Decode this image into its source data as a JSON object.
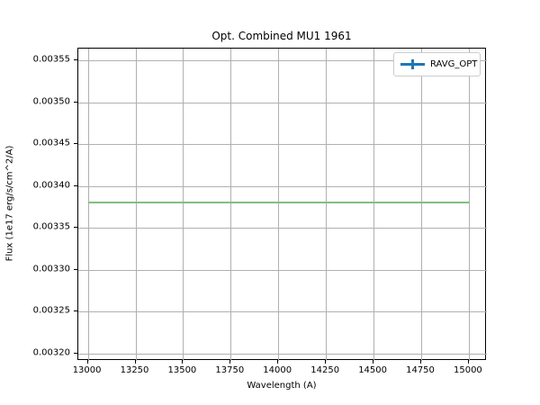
{
  "figure": {
    "background": "#ffffff"
  },
  "chart_data": {
    "type": "line",
    "title": "Opt. Combined MU1 1961",
    "xlabel": "Wavelength (A)",
    "ylabel": "Flux (1e17 erg/s/cm^2/A)",
    "xlim": [
      12950,
      15095
    ],
    "ylim": [
      0.0031909,
      0.0035642
    ],
    "x_ticks": [
      13000,
      13250,
      13500,
      13750,
      14000,
      14250,
      14500,
      14750,
      15000
    ],
    "y_ticks": [
      0.0032,
      0.00325,
      0.0033,
      0.00335,
      0.0034,
      0.00345,
      0.0035,
      0.00355
    ],
    "grid": true,
    "legend": {
      "position": "upper right",
      "entries": [
        {
          "label": "RAVG_OPT",
          "color": "#1f77b4",
          "marker": "errorbar"
        }
      ]
    },
    "series": [
      {
        "name": "RAVG_OPT",
        "color": "#80bf80",
        "x": [
          13000,
          15000
        ],
        "y": [
          0.00338,
          0.00338
        ]
      }
    ]
  },
  "colors": {
    "grid": "#b0b0b0",
    "spine": "#000000",
    "legend_border": "#cccccc",
    "legend_marker": "#1f77b4",
    "line": "#80bf80"
  }
}
